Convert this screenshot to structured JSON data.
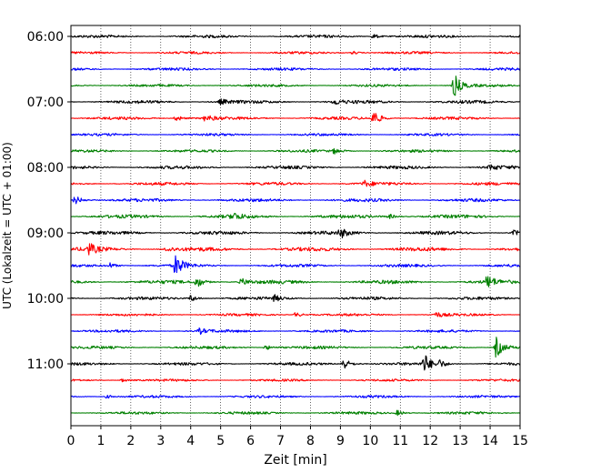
{
  "chart_data": {
    "type": "line",
    "title": "",
    "xlabel": "Zeit  [min]",
    "ylabel": "UTC (Lokalzeit = UTC + 01:00)",
    "xlim": [
      0,
      15
    ],
    "x_ticks": [
      "0",
      "1",
      "2",
      "3",
      "4",
      "5",
      "6",
      "7",
      "8",
      "9",
      "10",
      "11",
      "12",
      "13",
      "14",
      "15"
    ],
    "y_ticks": [
      {
        "label": "06:00",
        "trace": 0
      },
      {
        "label": "07:00",
        "trace": 4
      },
      {
        "label": "08:00",
        "trace": 8
      },
      {
        "label": "09:00",
        "trace": 12
      },
      {
        "label": "10:00",
        "trace": 16
      },
      {
        "label": "11:00",
        "trace": 20
      }
    ],
    "grid": "vertical dotted",
    "trace_interval_min": 15,
    "colors": [
      "#000000",
      "#ff0000",
      "#0000ff",
      "#008000"
    ],
    "traces": [
      {
        "start": "06:00",
        "color": "#000000",
        "noise": 1.6,
        "events": [
          {
            "t": 10.1,
            "a": 3
          }
        ]
      },
      {
        "start": "06:15",
        "color": "#ff0000",
        "noise": 1.4,
        "events": [
          {
            "t": 9.4,
            "a": 2
          }
        ]
      },
      {
        "start": "06:30",
        "color": "#0000ff",
        "noise": 1.5,
        "events": []
      },
      {
        "start": "06:45",
        "color": "#008000",
        "noise": 1.4,
        "events": [
          {
            "t": 12.8,
            "a": 13
          }
        ]
      },
      {
        "start": "07:00",
        "color": "#000000",
        "noise": 1.8,
        "events": [
          {
            "t": 8.8,
            "a": 3
          },
          {
            "t": 5.0,
            "a": 3
          }
        ]
      },
      {
        "start": "07:15",
        "color": "#ff0000",
        "noise": 1.6,
        "events": [
          {
            "t": 10.1,
            "a": 9
          },
          {
            "t": 3.5,
            "a": 4
          },
          {
            "t": 4.5,
            "a": 4
          }
        ]
      },
      {
        "start": "07:30",
        "color": "#0000ff",
        "noise": 1.4,
        "events": []
      },
      {
        "start": "07:45",
        "color": "#008000",
        "noise": 1.5,
        "events": [
          {
            "t": 8.8,
            "a": 3
          }
        ]
      },
      {
        "start": "08:00",
        "color": "#000000",
        "noise": 1.8,
        "events": [
          {
            "t": 14.0,
            "a": 3
          }
        ]
      },
      {
        "start": "08:15",
        "color": "#ff0000",
        "noise": 1.7,
        "events": [
          {
            "t": 9.8,
            "a": 3
          }
        ]
      },
      {
        "start": "08:30",
        "color": "#0000ff",
        "noise": 1.8,
        "events": [
          {
            "t": 0.15,
            "a": 5
          }
        ]
      },
      {
        "start": "08:45",
        "color": "#008000",
        "noise": 2.0,
        "events": [
          {
            "t": 5.4,
            "a": 4
          },
          {
            "t": 10.6,
            "a": 3
          }
        ]
      },
      {
        "start": "09:00",
        "color": "#000000",
        "noise": 2.0,
        "events": [
          {
            "t": 9.0,
            "a": 5
          },
          {
            "t": 14.8,
            "a": 3
          }
        ]
      },
      {
        "start": "09:15",
        "color": "#ff0000",
        "noise": 2.2,
        "events": [
          {
            "t": 0.6,
            "a": 6
          },
          {
            "t": 3.2,
            "a": 3
          }
        ]
      },
      {
        "start": "09:30",
        "color": "#0000ff",
        "noise": 1.6,
        "events": [
          {
            "t": 3.5,
            "a": 12
          },
          {
            "t": 1.3,
            "a": 3
          }
        ]
      },
      {
        "start": "09:45",
        "color": "#008000",
        "noise": 2.0,
        "events": [
          {
            "t": 4.2,
            "a": 6
          },
          {
            "t": 13.9,
            "a": 7
          },
          {
            "t": 5.7,
            "a": 4
          }
        ]
      },
      {
        "start": "10:00",
        "color": "#000000",
        "noise": 1.7,
        "events": [
          {
            "t": 4.0,
            "a": 4
          },
          {
            "t": 6.8,
            "a": 3
          }
        ]
      },
      {
        "start": "10:15",
        "color": "#ff0000",
        "noise": 1.4,
        "events": [
          {
            "t": 7.5,
            "a": 3
          },
          {
            "t": 12.2,
            "a": 3
          }
        ]
      },
      {
        "start": "10:30",
        "color": "#0000ff",
        "noise": 1.5,
        "events": [
          {
            "t": 4.3,
            "a": 3
          }
        ]
      },
      {
        "start": "10:45",
        "color": "#008000",
        "noise": 1.6,
        "events": [
          {
            "t": 14.2,
            "a": 12
          },
          {
            "t": 6.5,
            "a": 3
          }
        ]
      },
      {
        "start": "11:00",
        "color": "#000000",
        "noise": 1.6,
        "events": [
          {
            "t": 11.8,
            "a": 11
          },
          {
            "t": 9.1,
            "a": 7
          },
          {
            "t": 12.3,
            "a": 4
          }
        ]
      },
      {
        "start": "11:15",
        "color": "#ff0000",
        "noise": 1.3,
        "events": [
          {
            "t": 1.7,
            "a": 2
          }
        ]
      },
      {
        "start": "11:30",
        "color": "#0000ff",
        "noise": 1.4,
        "events": [
          {
            "t": 1.2,
            "a": 2
          }
        ]
      },
      {
        "start": "11:45",
        "color": "#008000",
        "noise": 1.5,
        "events": [
          {
            "t": 10.9,
            "a": 3
          }
        ]
      }
    ]
  }
}
